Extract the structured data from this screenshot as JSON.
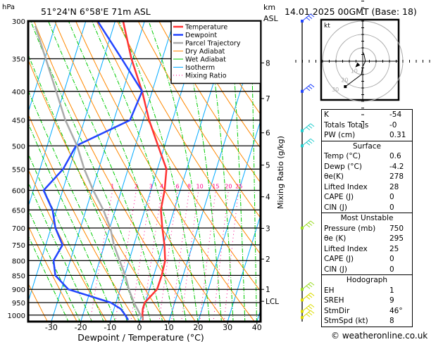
{
  "header": {
    "pressure_unit": "hPa",
    "location": "51°24'N  6°58'E  71m  ASL",
    "height_unit_top": "km",
    "height_unit_bottom": "ASL",
    "datetime": "14.01.2025  00GMT  (Base: 18)"
  },
  "legend": [
    {
      "label": "Temperature",
      "color": "#ff3333",
      "style": "thick"
    },
    {
      "label": "Dewpoint",
      "color": "#2244ff",
      "style": "thick"
    },
    {
      "label": "Parcel Trajectory",
      "color": "#aaaaaa",
      "style": "thick"
    },
    {
      "label": "Dry Adiabat",
      "color": "#ff8800",
      "style": "thin"
    },
    {
      "label": "Wet Adiabat",
      "color": "#00cc00",
      "style": "thin"
    },
    {
      "label": "Isotherm",
      "color": "#00aaff",
      "style": "thin"
    },
    {
      "label": "Mixing Ratio",
      "color": "#ff0088",
      "style": "dotted"
    }
  ],
  "chart_data": {
    "type": "line",
    "subtype": "skew-T log-P",
    "xlabel": "Dewpoint / Temperature (°C)",
    "ylabel": "hPa",
    "y2label": "Mixing Ratio (g/kg)",
    "x_ticks": [
      -30,
      -20,
      -10,
      0,
      10,
      20,
      30,
      40
    ],
    "pressure_levels": [
      300,
      350,
      400,
      450,
      500,
      550,
      600,
      650,
      700,
      750,
      800,
      850,
      900,
      950,
      1000
    ],
    "pressure_range": [
      1027,
      300
    ],
    "temp_range_at_bottom": [
      -38,
      41
    ],
    "height_km_ticks": [
      {
        "label": "8",
        "p": 356
      },
      {
        "label": "7",
        "p": 412
      },
      {
        "label": "6",
        "p": 474
      },
      {
        "label": "5",
        "p": 541
      },
      {
        "label": "4",
        "p": 616
      },
      {
        "label": "3",
        "p": 701
      },
      {
        "label": "2",
        "p": 795
      },
      {
        "label": "1",
        "p": 900
      },
      {
        "label": "LCL",
        "p": 945
      }
    ],
    "mixing_ratio_labels": [
      1,
      2,
      3,
      4,
      6,
      8,
      10,
      15,
      20,
      25
    ],
    "series": [
      {
        "name": "Temperature",
        "color": "#ff3333",
        "points": [
          [
            1020,
            1.0
          ],
          [
            1000,
            0.3
          ],
          [
            975,
            -0.2
          ],
          [
            950,
            -0.2
          ],
          [
            900,
            2.6
          ],
          [
            850,
            2.7
          ],
          [
            800,
            2.3
          ],
          [
            750,
            0.4
          ],
          [
            700,
            -2.1
          ],
          [
            650,
            -4.5
          ],
          [
            600,
            -5.3
          ],
          [
            550,
            -6.9
          ],
          [
            500,
            -12.2
          ],
          [
            450,
            -18.0
          ],
          [
            400,
            -23.4
          ],
          [
            350,
            -30.5
          ],
          [
            300,
            -37.3
          ]
        ]
      },
      {
        "name": "Dewpoint",
        "color": "#2244ff",
        "points": [
          [
            1020,
            -4.0
          ],
          [
            1000,
            -5.5
          ],
          [
            975,
            -7.7
          ],
          [
            950,
            -11.8
          ],
          [
            900,
            -27.6
          ],
          [
            850,
            -33.5
          ],
          [
            800,
            -35.7
          ],
          [
            750,
            -34.3
          ],
          [
            700,
            -38.5
          ],
          [
            650,
            -41.4
          ],
          [
            600,
            -46.5
          ],
          [
            550,
            -42.1
          ],
          [
            500,
            -40.2
          ],
          [
            450,
            -24.5
          ],
          [
            400,
            -23.4
          ],
          [
            350,
            -33.8
          ],
          [
            300,
            -46.0
          ]
        ]
      },
      {
        "name": "Parcel Trajectory",
        "color": "#aaaaaa",
        "points": [
          [
            1017,
            0.9
          ],
          [
            950,
            -3.9
          ],
          [
            900,
            -7.0
          ],
          [
            850,
            -9.7
          ],
          [
            800,
            -13.2
          ],
          [
            750,
            -16.8
          ],
          [
            700,
            -19.8
          ],
          [
            650,
            -24.1
          ],
          [
            600,
            -29.6
          ],
          [
            550,
            -34.9
          ],
          [
            500,
            -39.8
          ],
          [
            450,
            -46.5
          ],
          [
            306,
            -66.7
          ]
        ]
      }
    ]
  },
  "wind_barbs": [
    {
      "p": 300,
      "color": "#2244ff"
    },
    {
      "p": 400,
      "color": "#2244ff"
    },
    {
      "p": 470,
      "color": "#22cccc"
    },
    {
      "p": 500,
      "color": "#22cccc"
    },
    {
      "p": 700,
      "color": "#99dd22"
    },
    {
      "p": 900,
      "color": "#99dd22"
    },
    {
      "p": 940,
      "color": "#dddd00"
    },
    {
      "p": 985,
      "color": "#dddd00"
    },
    {
      "p": 1010,
      "color": "#dddd00"
    }
  ],
  "hodograph": {
    "unit": "kt",
    "ring_labels": [
      "10",
      "20",
      "30"
    ],
    "trace_kt": [
      [
        -13,
        -19
      ],
      [
        -1,
        -10
      ],
      [
        0,
        -4
      ],
      [
        2,
        0
      ],
      [
        1,
        5
      ],
      [
        0,
        7
      ]
    ],
    "storm_motion_kt": [
      -4,
      -3
    ]
  },
  "indices": {
    "general": [
      {
        "label": "K",
        "value": "-54"
      },
      {
        "label": "Totals Totals",
        "value": "-0"
      },
      {
        "label": "PW (cm)",
        "value": "0.31"
      }
    ],
    "surface": {
      "title": "Surface",
      "rows": [
        {
          "label": "Temp (°C)",
          "value": "0.6"
        },
        {
          "label": "Dewp (°C)",
          "value": "-4.2"
        },
        {
          "label": "θe(K)",
          "value": "278"
        },
        {
          "label": "Lifted Index",
          "value": "28"
        },
        {
          "label": "CAPE (J)",
          "value": "0"
        },
        {
          "label": "CIN (J)",
          "value": "0"
        }
      ]
    },
    "most_unstable": {
      "title": "Most Unstable",
      "rows": [
        {
          "label": "Pressure (mb)",
          "value": "750"
        },
        {
          "label": "θe (K)",
          "value": "295"
        },
        {
          "label": "Lifted Index",
          "value": "25"
        },
        {
          "label": "CAPE (J)",
          "value": "0"
        },
        {
          "label": "CIN (J)",
          "value": "0"
        }
      ]
    },
    "hodograph": {
      "title": "Hodograph",
      "rows": [
        {
          "label": "EH",
          "value": "1"
        },
        {
          "label": "SREH",
          "value": "9"
        },
        {
          "label": "StmDir",
          "value": "46°"
        },
        {
          "label": "StmSpd (kt)",
          "value": "8"
        }
      ]
    }
  },
  "footer": {
    "copyright": "© weatheronline.co.uk"
  }
}
